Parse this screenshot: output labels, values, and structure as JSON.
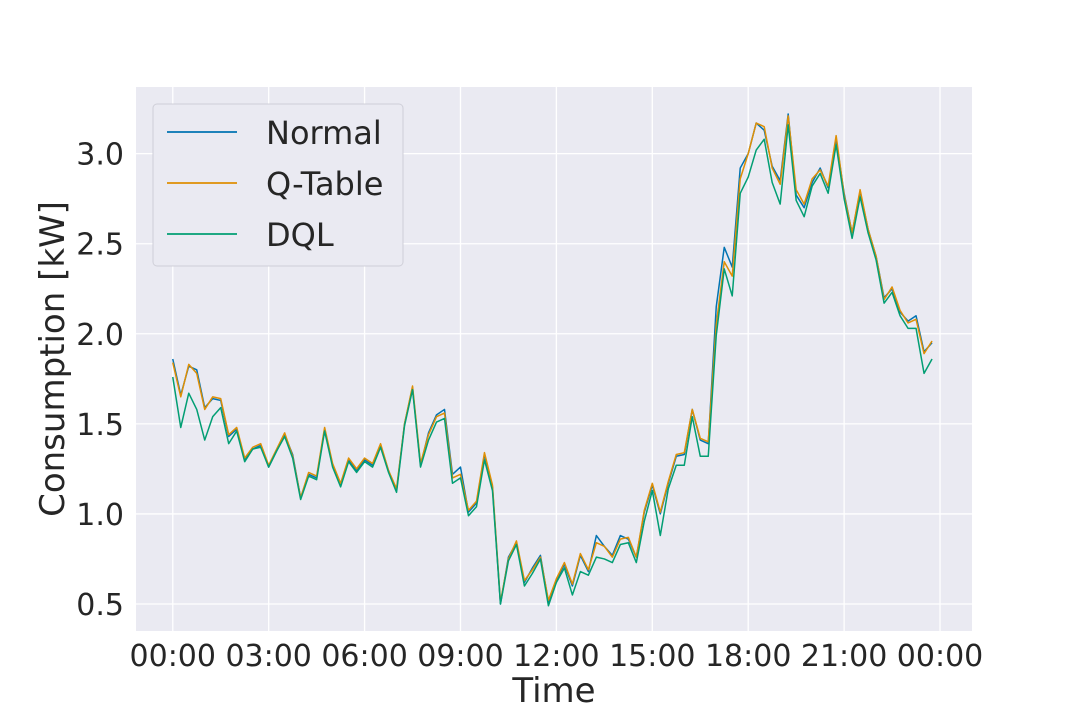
{
  "chart_data": {
    "type": "line",
    "xlabel": "Time",
    "ylabel": "Consumption [kW]",
    "x_tick_labels": [
      "00:00",
      "03:00",
      "06:00",
      "09:00",
      "12:00",
      "15:00",
      "18:00",
      "21:00",
      "00:00"
    ],
    "x_tick_hours": [
      0,
      3,
      6,
      9,
      12,
      15,
      18,
      21,
      24
    ],
    "y_ticks": [
      0.5,
      1.0,
      1.5,
      2.0,
      2.5,
      3.0
    ],
    "y_tick_labels": [
      "0.5",
      "1.0",
      "1.5",
      "2.0",
      "2.5",
      "3.0"
    ],
    "xlim": [
      -1.15,
      25.0
    ],
    "ylim": [
      0.35,
      3.37
    ],
    "grid": true,
    "legend_position": "upper-left",
    "x_hours": [
      0,
      0.25,
      0.5,
      0.75,
      1,
      1.25,
      1.5,
      1.75,
      2,
      2.25,
      2.5,
      2.75,
      3,
      3.25,
      3.5,
      3.75,
      4,
      4.25,
      4.5,
      4.75,
      5,
      5.25,
      5.5,
      5.75,
      6,
      6.25,
      6.5,
      6.75,
      7,
      7.25,
      7.5,
      7.75,
      8,
      8.25,
      8.5,
      8.75,
      9,
      9.25,
      9.5,
      9.75,
      10,
      10.25,
      10.5,
      10.75,
      11,
      11.25,
      11.5,
      11.75,
      12,
      12.25,
      12.5,
      12.75,
      13,
      13.25,
      13.5,
      13.75,
      14,
      14.25,
      14.5,
      14.75,
      15,
      15.25,
      15.5,
      15.75,
      16,
      16.25,
      16.5,
      16.75,
      17,
      17.25,
      17.5,
      17.75,
      18,
      18.25,
      18.5,
      18.75,
      19,
      19.25,
      19.5,
      19.75,
      20,
      20.25,
      20.5,
      20.75,
      21,
      21.25,
      21.5,
      21.75,
      22,
      22.25,
      22.5,
      22.75,
      23,
      23.25,
      23.5,
      23.75
    ],
    "series": [
      {
        "name": "Normal",
        "color": "#0173b2",
        "values": [
          1.86,
          1.66,
          1.82,
          1.8,
          1.59,
          1.64,
          1.63,
          1.43,
          1.47,
          1.3,
          1.36,
          1.38,
          1.26,
          1.35,
          1.44,
          1.33,
          1.09,
          1.22,
          1.2,
          1.47,
          1.27,
          1.16,
          1.3,
          1.24,
          1.3,
          1.27,
          1.38,
          1.24,
          1.13,
          1.5,
          1.7,
          1.27,
          1.45,
          1.55,
          1.58,
          1.22,
          1.26,
          1.01,
          1.06,
          1.33,
          1.15,
          0.5,
          0.76,
          0.84,
          0.62,
          0.7,
          0.77,
          0.51,
          0.63,
          0.72,
          0.6,
          0.77,
          0.68,
          0.88,
          0.82,
          0.77,
          0.88,
          0.86,
          0.76,
          1.01,
          1.16,
          1.0,
          1.17,
          1.32,
          1.33,
          1.58,
          1.41,
          1.39,
          2.15,
          2.48,
          2.37,
          2.92,
          3.0,
          3.17,
          3.13,
          2.93,
          2.85,
          3.22,
          2.77,
          2.7,
          2.84,
          2.92,
          2.81,
          3.08,
          2.78,
          2.56,
          2.79,
          2.58,
          2.43,
          2.2,
          2.25,
          2.12,
          2.07,
          2.1,
          1.9,
          1.95
        ]
      },
      {
        "name": "Q-Table",
        "color": "#de8f05",
        "values": [
          1.84,
          1.65,
          1.83,
          1.78,
          1.58,
          1.65,
          1.64,
          1.44,
          1.48,
          1.31,
          1.37,
          1.39,
          1.27,
          1.36,
          1.45,
          1.32,
          1.09,
          1.23,
          1.21,
          1.48,
          1.28,
          1.17,
          1.31,
          1.25,
          1.31,
          1.28,
          1.39,
          1.24,
          1.14,
          1.5,
          1.71,
          1.28,
          1.44,
          1.54,
          1.56,
          1.2,
          1.22,
          1.02,
          1.07,
          1.34,
          1.16,
          0.51,
          0.75,
          0.85,
          0.63,
          0.69,
          0.76,
          0.52,
          0.64,
          0.73,
          0.61,
          0.78,
          0.69,
          0.84,
          0.82,
          0.76,
          0.86,
          0.87,
          0.76,
          1.02,
          1.17,
          1.01,
          1.18,
          1.33,
          1.34,
          1.58,
          1.42,
          1.4,
          2.05,
          2.4,
          2.32,
          2.86,
          3.0,
          3.17,
          3.15,
          2.92,
          2.83,
          3.21,
          2.8,
          2.72,
          2.86,
          2.91,
          2.82,
          3.1,
          2.77,
          2.56,
          2.8,
          2.58,
          2.43,
          2.19,
          2.26,
          2.13,
          2.06,
          2.08,
          1.89,
          1.96
        ]
      },
      {
        "name": "DQL",
        "color": "#029e73",
        "values": [
          1.76,
          1.48,
          1.67,
          1.58,
          1.41,
          1.54,
          1.59,
          1.39,
          1.46,
          1.29,
          1.36,
          1.37,
          1.26,
          1.35,
          1.43,
          1.31,
          1.08,
          1.21,
          1.19,
          1.46,
          1.26,
          1.15,
          1.29,
          1.23,
          1.29,
          1.26,
          1.37,
          1.23,
          1.12,
          1.49,
          1.69,
          1.26,
          1.41,
          1.51,
          1.53,
          1.17,
          1.2,
          0.99,
          1.04,
          1.3,
          1.13,
          0.5,
          0.74,
          0.83,
          0.6,
          0.67,
          0.75,
          0.49,
          0.62,
          0.7,
          0.55,
          0.68,
          0.66,
          0.76,
          0.75,
          0.73,
          0.83,
          0.84,
          0.73,
          0.96,
          1.13,
          0.88,
          1.14,
          1.27,
          1.27,
          1.54,
          1.32,
          1.32,
          1.99,
          2.36,
          2.21,
          2.78,
          2.87,
          3.02,
          3.08,
          2.84,
          2.72,
          3.16,
          2.74,
          2.65,
          2.82,
          2.89,
          2.78,
          3.05,
          2.75,
          2.53,
          2.76,
          2.56,
          2.41,
          2.17,
          2.23,
          2.1,
          2.03,
          2.03,
          1.78,
          1.86
        ]
      }
    ]
  }
}
